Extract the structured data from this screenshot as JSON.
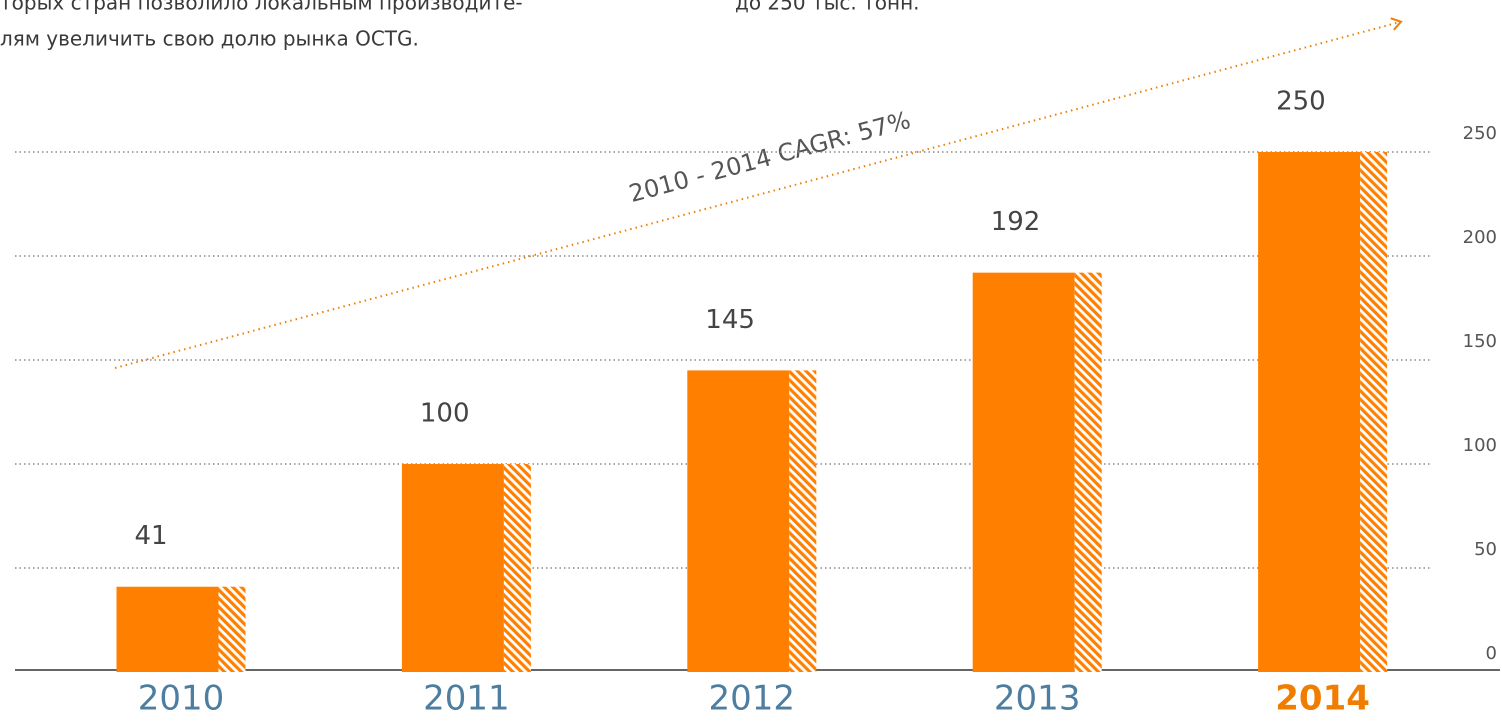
{
  "text_above": {
    "left": [
      "торых стран позволило локальным производите-",
      "лям увеличить свою долю рынка OCTG."
    ],
    "right": "до 250 тыс. тонн."
  },
  "chart_data": {
    "type": "bar",
    "categories": [
      "2010",
      "2011",
      "2012",
      "2013",
      "2014"
    ],
    "values": [
      41,
      100,
      145,
      192,
      250
    ],
    "color": "#ff8000",
    "highlight_index": 4,
    "ylim": [
      0,
      250
    ],
    "yticks": [
      0,
      50,
      100,
      150,
      200,
      250
    ],
    "grid": true,
    "annotation": "2010 - 2014 CAGR: 57%"
  }
}
